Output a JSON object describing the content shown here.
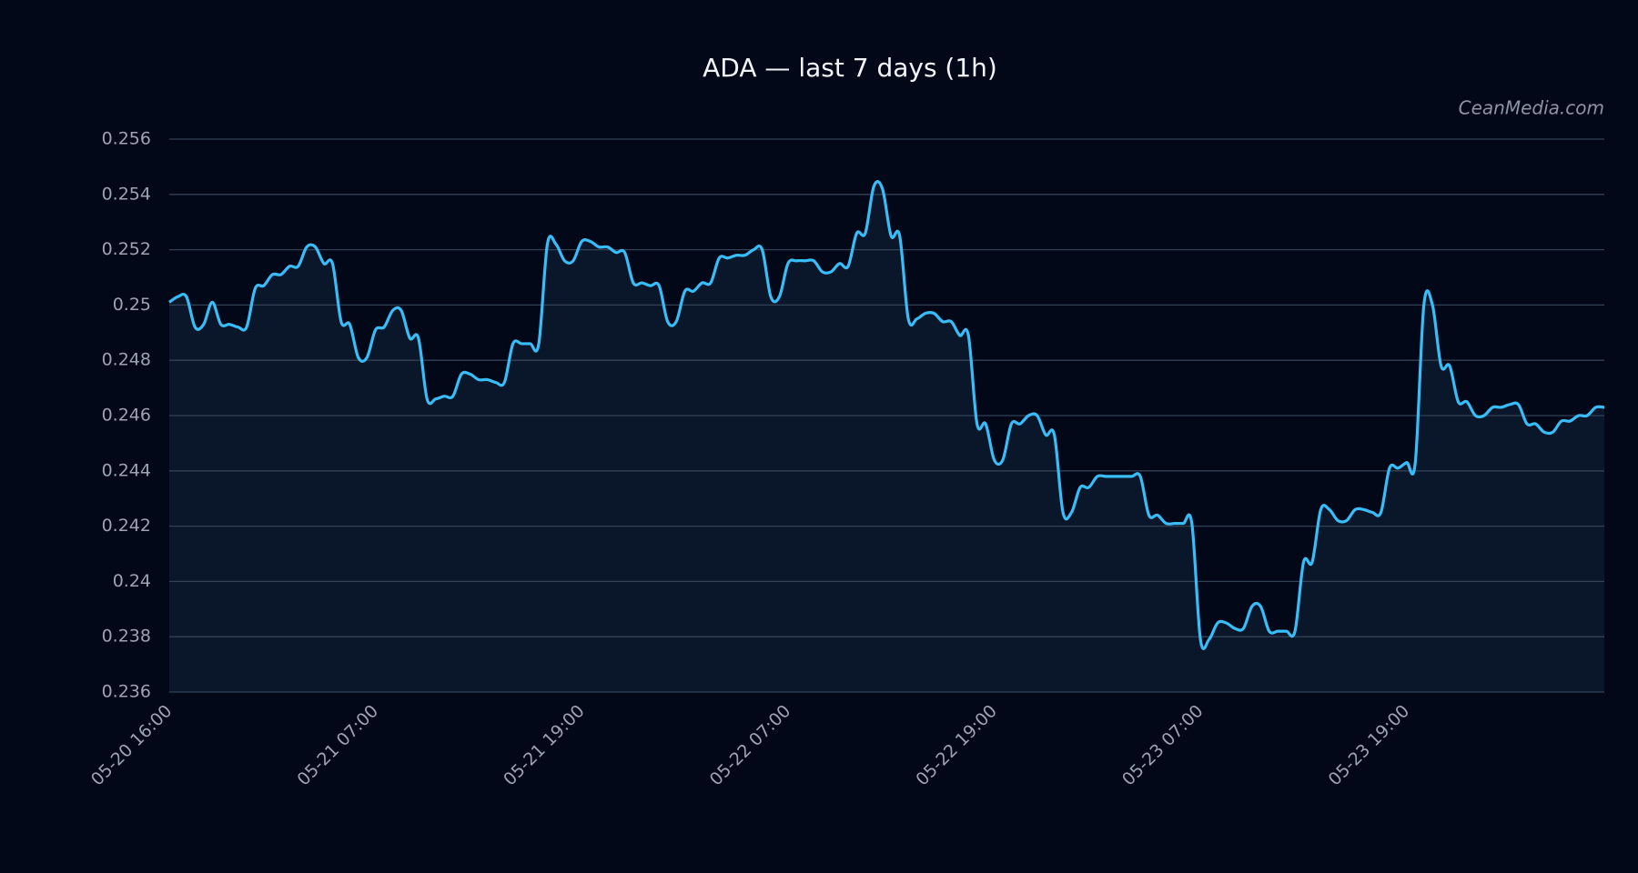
{
  "chart_data": {
    "type": "line",
    "title": "ADA — last 7 days (1h)",
    "watermark": "CeanMedia.com",
    "categories": [
      "05-20 16:00",
      null,
      null,
      null,
      null,
      null,
      null,
      null,
      null,
      null,
      null,
      null,
      null,
      null,
      null,
      null,
      null,
      null,
      null,
      null,
      null,
      null,
      null,
      null,
      "05-21 07:00",
      null,
      null,
      null,
      null,
      null,
      null,
      null,
      null,
      null,
      null,
      null,
      null,
      null,
      null,
      null,
      null,
      null,
      null,
      null,
      null,
      null,
      null,
      null,
      "05-21 19:00",
      null,
      null,
      null,
      null,
      null,
      null,
      null,
      null,
      null,
      null,
      null,
      null,
      null,
      null,
      null,
      null,
      null,
      null,
      null,
      null,
      null,
      null,
      null,
      "05-22 07:00",
      null,
      null,
      null,
      null,
      null,
      null,
      null,
      null,
      null,
      null,
      null,
      null,
      null,
      null,
      null,
      null,
      null,
      null,
      null,
      null,
      null,
      null,
      null,
      "05-22 19:00",
      null,
      null,
      null,
      null,
      null,
      null,
      null,
      null,
      null,
      null,
      null,
      null,
      null,
      null,
      null,
      null,
      null,
      null,
      null,
      null,
      null,
      null,
      null,
      "05-23 07:00",
      null,
      null,
      null,
      null,
      null,
      null,
      null,
      null,
      null,
      null,
      null,
      null,
      null,
      null,
      null,
      null,
      null,
      null,
      null,
      null,
      null,
      null,
      null,
      "05-23 19:00",
      null,
      null,
      null,
      null,
      null,
      null,
      null,
      null,
      null,
      null,
      null,
      null,
      null,
      null,
      null,
      null,
      null,
      null,
      null,
      null,
      null,
      null,
      null
    ],
    "values": [
      0.2501,
      0.2503,
      0.2503,
      0.2492,
      0.2493,
      0.2501,
      0.2493,
      0.2493,
      0.2492,
      0.2492,
      0.2506,
      0.2507,
      0.2511,
      0.2511,
      0.2514,
      0.2514,
      0.2521,
      0.2521,
      0.2515,
      0.2515,
      0.2494,
      0.2493,
      0.2481,
      0.2481,
      0.2491,
      0.2492,
      0.2498,
      0.2498,
      0.2488,
      0.2488,
      0.2466,
      0.2466,
      0.2467,
      0.2467,
      0.2475,
      0.2475,
      0.2473,
      0.2473,
      0.2472,
      0.2472,
      0.2486,
      0.2486,
      0.2486,
      0.2486,
      0.2522,
      0.2522,
      0.2516,
      0.2516,
      0.2523,
      0.2523,
      0.2521,
      0.2521,
      0.2519,
      0.2519,
      0.2508,
      0.2508,
      0.2507,
      0.2507,
      0.2494,
      0.2494,
      0.2505,
      0.2505,
      0.2508,
      0.2508,
      0.2517,
      0.2517,
      0.2518,
      0.2518,
      0.252,
      0.252,
      0.2503,
      0.2503,
      0.2515,
      0.2516,
      0.2516,
      0.2516,
      0.2512,
      0.2512,
      0.2515,
      0.2514,
      0.2526,
      0.2526,
      0.2543,
      0.2542,
      0.2525,
      0.2525,
      0.2495,
      0.2495,
      0.2497,
      0.2497,
      0.2494,
      0.2494,
      0.2489,
      0.2489,
      0.2457,
      0.2457,
      0.2444,
      0.2444,
      0.2457,
      0.2457,
      0.246,
      0.246,
      0.2453,
      0.2453,
      0.2425,
      0.2425,
      0.2434,
      0.2434,
      0.2438,
      0.2438,
      0.2438,
      0.2438,
      0.2438,
      0.2438,
      0.2424,
      0.2424,
      0.2421,
      0.2421,
      0.2421,
      0.2421,
      0.2379,
      0.2379,
      0.2385,
      0.2385,
      0.2383,
      0.2383,
      0.2391,
      0.2391,
      0.2382,
      0.2382,
      0.2382,
      0.2382,
      0.2407,
      0.2407,
      0.2426,
      0.2426,
      0.2422,
      0.2422,
      0.2426,
      0.2426,
      0.2425,
      0.2425,
      0.2441,
      0.2441,
      0.2443,
      0.2443,
      0.25,
      0.25,
      0.2478,
      0.2478,
      0.2465,
      0.2465,
      0.246,
      0.246,
      0.2463,
      0.2463,
      0.2464,
      0.2464,
      0.2457,
      0.2457,
      0.2454,
      0.2454,
      0.2458,
      0.2458,
      0.246,
      0.246,
      0.2463,
      0.2463
    ],
    "color": "#38bdf8",
    "area": true,
    "ylim": [
      0.236,
      0.256
    ],
    "yticks": [
      0.236,
      0.238,
      0.24,
      0.242,
      0.244,
      0.246,
      0.248,
      0.25,
      0.252,
      0.254,
      0.256
    ],
    "grid": true
  }
}
